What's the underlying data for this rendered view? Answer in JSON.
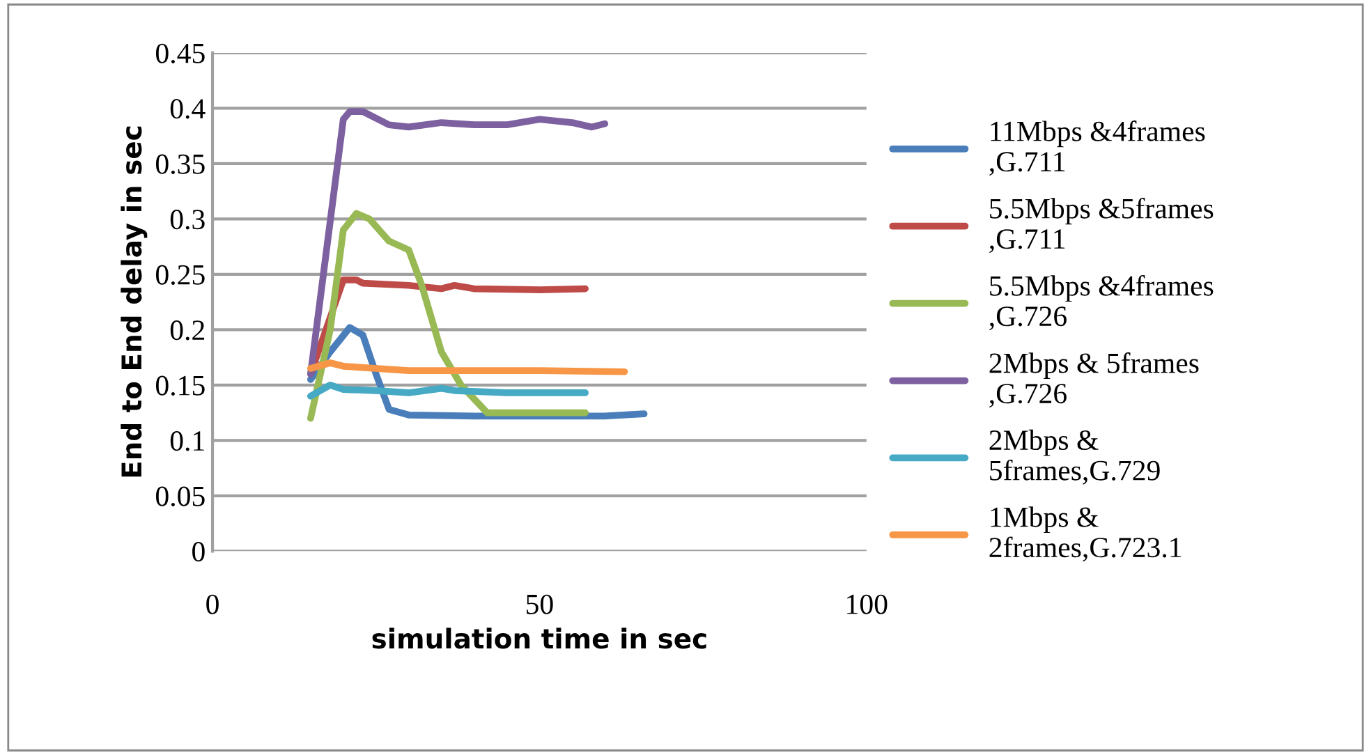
{
  "chart_data": {
    "type": "line",
    "xlabel": "simulation time in sec",
    "ylabel": "End to End delay in sec",
    "xlim": [
      0,
      100
    ],
    "xticks": [
      0,
      50,
      100
    ],
    "ylim": [
      0,
      0.45
    ],
    "yticks": [
      0,
      0.05,
      0.1,
      0.15,
      0.2,
      0.25,
      0.3,
      0.35,
      0.4,
      0.45
    ],
    "grid": "y",
    "legend": "right",
    "marker": "none",
    "line_style": "solid",
    "series": [
      {
        "name": "11Mbps &4frames\n,G.711",
        "color": "#4a7ebb",
        "x": [
          15,
          18,
          21,
          23,
          25,
          27,
          30,
          40,
          50,
          60,
          66
        ],
        "values": [
          0.155,
          0.18,
          0.202,
          0.195,
          0.16,
          0.128,
          0.123,
          0.122,
          0.122,
          0.122,
          0.124
        ]
      },
      {
        "name": "5.5Mbps &5frames\n,G.711",
        "color": "#be4b48",
        "x": [
          15,
          20,
          22,
          23,
          30,
          35,
          37,
          40,
          50,
          57
        ],
        "values": [
          0.16,
          0.245,
          0.245,
          0.242,
          0.24,
          0.237,
          0.24,
          0.237,
          0.236,
          0.237
        ]
      },
      {
        "name": "5.5Mbps &4frames\n,G.726",
        "color": "#98b954",
        "x": [
          15,
          18,
          20,
          22,
          24,
          27,
          30,
          32,
          35,
          38,
          42,
          50,
          57
        ],
        "values": [
          0.12,
          0.2,
          0.29,
          0.305,
          0.3,
          0.28,
          0.272,
          0.24,
          0.18,
          0.15,
          0.125,
          0.125,
          0.125
        ]
      },
      {
        "name": "2Mbps & 5frames\n,G.726",
        "color": "#7d60a0",
        "x": [
          15,
          20,
          21,
          23,
          27,
          30,
          35,
          40,
          45,
          50,
          55,
          58,
          60
        ],
        "values": [
          0.16,
          0.39,
          0.397,
          0.397,
          0.385,
          0.383,
          0.387,
          0.385,
          0.385,
          0.39,
          0.387,
          0.383,
          0.386
        ]
      },
      {
        "name": "2Mbps &\n5frames,G.729",
        "color": "#46aac5",
        "x": [
          15,
          18,
          20,
          25,
          30,
          35,
          37,
          45,
          57
        ],
        "values": [
          0.14,
          0.15,
          0.146,
          0.145,
          0.143,
          0.147,
          0.145,
          0.143,
          0.143
        ]
      },
      {
        "name": "1Mbps &\n2frames,G.723.1",
        "color": "#f79646",
        "x": [
          15,
          18,
          20,
          30,
          40,
          50,
          63
        ],
        "values": [
          0.165,
          0.17,
          0.167,
          0.163,
          0.163,
          0.163,
          0.162
        ]
      }
    ]
  }
}
